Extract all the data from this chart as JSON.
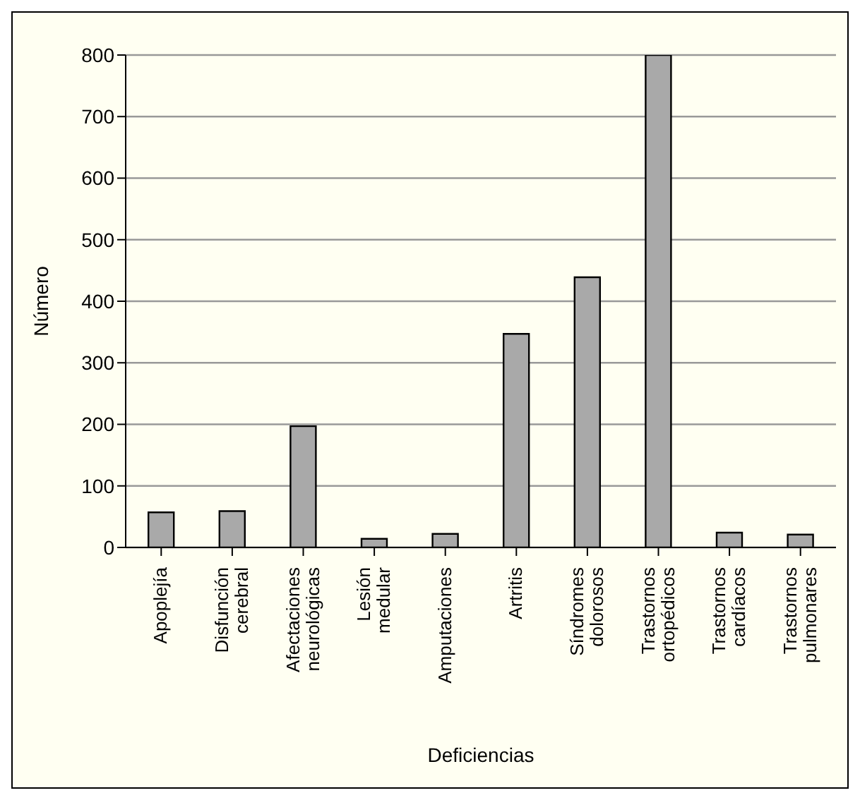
{
  "chart_data": {
    "type": "bar",
    "xlabel": "Deficiencias",
    "ylabel": "Número",
    "categories": [
      "Apoplejía",
      "Disfunción cerebral",
      "Afectaciones neurológicas",
      "Lesión medular",
      "Amputaciones",
      "Artritis",
      "Síndromes dolorosos",
      "Trastornos ortopédicos",
      "Trastornos cardíacos",
      "Trastornos pulmonares"
    ],
    "values": [
      57,
      59,
      197,
      14,
      22,
      347,
      439,
      800,
      24,
      21
    ],
    "color": "#a9a9a9",
    "ylim": [
      0,
      800
    ],
    "yticks": [
      0,
      100,
      200,
      300,
      400,
      500,
      600,
      700,
      800
    ],
    "grid": "y",
    "legend": false
  }
}
